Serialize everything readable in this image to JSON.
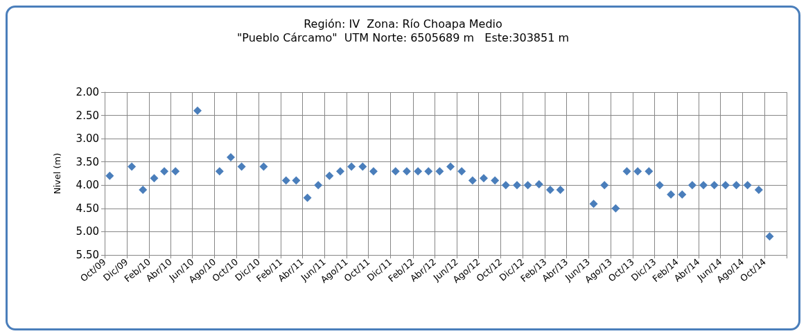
{
  "chart_data": {
    "type": "scatter",
    "title": "Región: IV  Zona: Río Choapa Medio",
    "subtitle": "\"Pueblo Cárcamo\"  UTM Norte: 6505689 m   Este:303851 m",
    "ylabel": "Nivel (m)",
    "x": [
      "2009-10-15",
      "2009-12-15",
      "2010-01-15",
      "2010-02-15",
      "2010-03-15",
      "2010-04-15",
      "2010-06-15",
      "2010-08-15",
      "2010-09-15",
      "2010-10-15",
      "2010-12-15",
      "2011-02-15",
      "2011-03-15",
      "2011-04-15",
      "2011-05-15",
      "2011-06-15",
      "2011-07-15",
      "2011-08-15",
      "2011-09-15",
      "2011-10-15",
      "2011-12-15",
      "2012-01-15",
      "2012-02-15",
      "2012-03-15",
      "2012-04-15",
      "2012-05-15",
      "2012-06-15",
      "2012-07-15",
      "2012-08-15",
      "2012-09-15",
      "2012-10-15",
      "2012-11-15",
      "2012-12-15",
      "2013-01-15",
      "2013-02-15",
      "2013-03-15",
      "2013-06-15",
      "2013-07-15",
      "2013-08-15",
      "2013-09-15",
      "2013-10-15",
      "2013-11-15",
      "2013-12-15",
      "2014-01-15",
      "2014-02-15",
      "2014-03-15",
      "2014-04-15",
      "2014-05-15",
      "2014-06-15",
      "2014-07-15",
      "2014-08-15",
      "2014-09-15",
      "2014-10-15"
    ],
    "series": [
      {
        "color": "#4a7ebb",
        "values": [
          3.8,
          3.6,
          4.1,
          3.85,
          3.7,
          3.7,
          2.4,
          3.7,
          3.4,
          3.6,
          3.6,
          3.9,
          3.9,
          4.27,
          4.0,
          3.8,
          3.7,
          3.6,
          3.6,
          3.7,
          3.7,
          3.7,
          3.7,
          3.7,
          3.7,
          3.6,
          3.7,
          3.9,
          3.85,
          3.9,
          4.0,
          4.0,
          4.0,
          3.98,
          4.1,
          4.1,
          4.4,
          4.0,
          4.5,
          3.7,
          3.7,
          3.7,
          4.0,
          4.2,
          4.2,
          4.0,
          4.0,
          4.0,
          4.0,
          4.0,
          4.0,
          4.1,
          5.1
        ]
      }
    ],
    "xlim": [
      "2009-10",
      "2014-12"
    ],
    "xticks": [
      {
        "value": "2009-10",
        "label": "Oct/09"
      },
      {
        "value": "2009-12",
        "label": "Dic/09"
      },
      {
        "value": "2010-02",
        "label": "Feb/10"
      },
      {
        "value": "2010-04",
        "label": "Abr/10"
      },
      {
        "value": "2010-06",
        "label": "Jun/10"
      },
      {
        "value": "2010-08",
        "label": "Ago/10"
      },
      {
        "value": "2010-10",
        "label": "Oct/10"
      },
      {
        "value": "2010-12",
        "label": "Dic/10"
      },
      {
        "value": "2011-02",
        "label": "Feb/11"
      },
      {
        "value": "2011-04",
        "label": "Abr/11"
      },
      {
        "value": "2011-06",
        "label": "Jun/11"
      },
      {
        "value": "2011-08",
        "label": "Ago/11"
      },
      {
        "value": "2011-10",
        "label": "Oct/11"
      },
      {
        "value": "2011-12",
        "label": "Dic/11"
      },
      {
        "value": "2012-02",
        "label": "Feb/12"
      },
      {
        "value": "2012-04",
        "label": "Abr/12"
      },
      {
        "value": "2012-06",
        "label": "Jun/12"
      },
      {
        "value": "2012-08",
        "label": "Ago/12"
      },
      {
        "value": "2012-10",
        "label": "Oct/12"
      },
      {
        "value": "2012-12",
        "label": "Dic/12"
      },
      {
        "value": "2013-02",
        "label": "Feb/13"
      },
      {
        "value": "2013-04",
        "label": "Abr/13"
      },
      {
        "value": "2013-06",
        "label": "Jun/13"
      },
      {
        "value": "2013-08",
        "label": "Ago/13"
      },
      {
        "value": "2013-10",
        "label": "Oct/13"
      },
      {
        "value": "2013-12",
        "label": "Dic/13"
      },
      {
        "value": "2014-02",
        "label": "Feb/14"
      },
      {
        "value": "2014-04",
        "label": "Abr/14"
      },
      {
        "value": "2014-06",
        "label": "Jun/14"
      },
      {
        "value": "2014-08",
        "label": "Ago/14"
      },
      {
        "value": "2014-10",
        "label": "Oct/14"
      },
      {
        "value": "2014-12",
        "label": null
      }
    ],
    "ylim": [
      5.5,
      2.0
    ],
    "yticks": [
      {
        "value": 2.0,
        "label": "2.00"
      },
      {
        "value": 2.5,
        "label": "2.50"
      },
      {
        "value": 3.0,
        "label": "3.00"
      },
      {
        "value": 3.5,
        "label": "3.50"
      },
      {
        "value": 4.0,
        "label": "4.00"
      },
      {
        "value": 4.5,
        "label": "4.50"
      },
      {
        "value": 5.0,
        "label": "5.00"
      },
      {
        "value": 5.5,
        "label": "5.50"
      }
    ],
    "grid": true,
    "marker": "diamond"
  }
}
